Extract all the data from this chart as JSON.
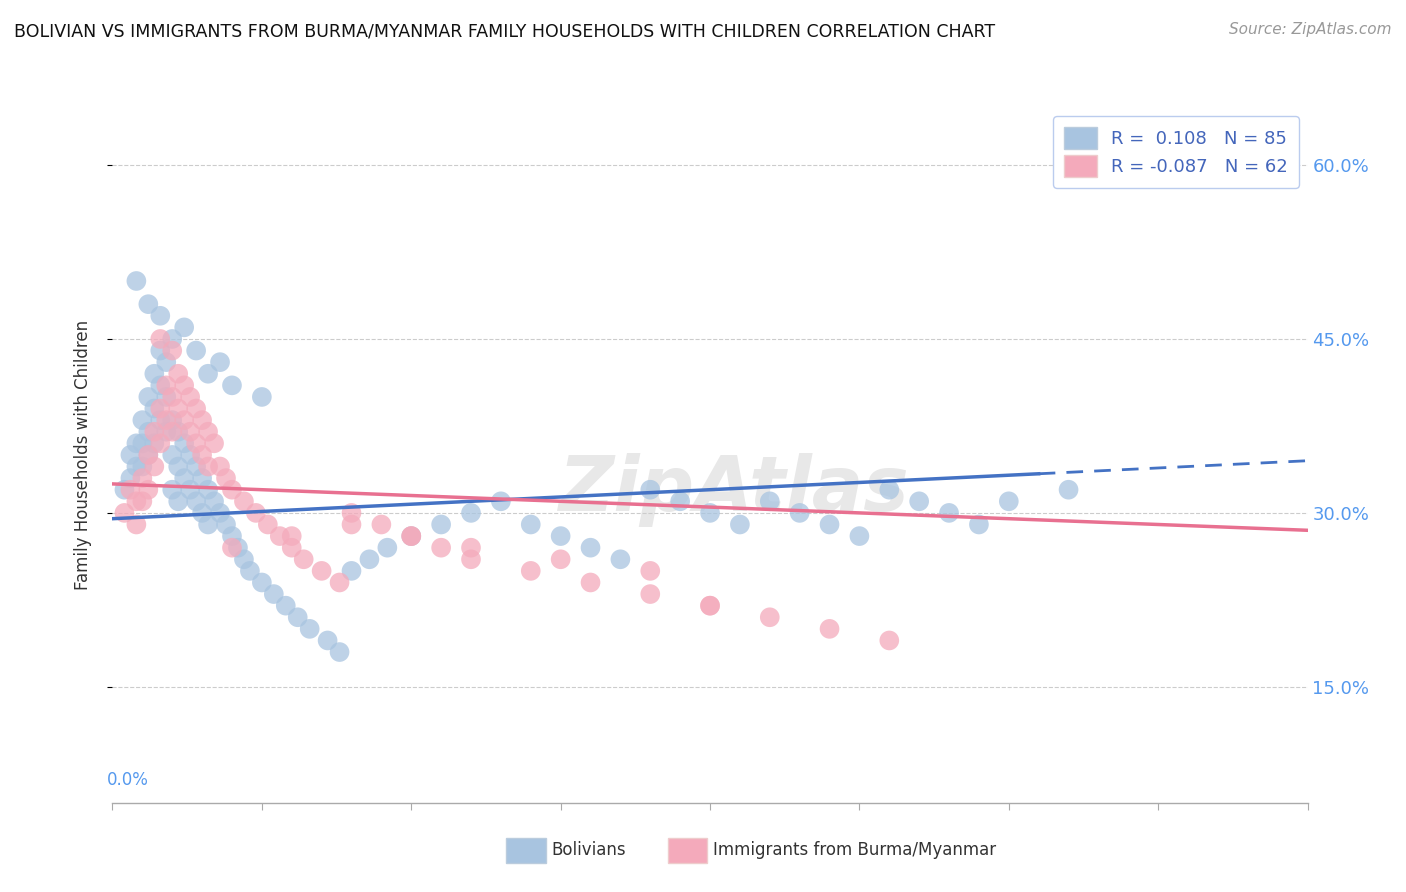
{
  "title": "BOLIVIAN VS IMMIGRANTS FROM BURMA/MYANMAR FAMILY HOUSEHOLDS WITH CHILDREN CORRELATION CHART",
  "source": "Source: ZipAtlas.com",
  "ylabel": "Family Households with Children",
  "ytick_vals": [
    0.15,
    0.3,
    0.45,
    0.6
  ],
  "ytick_labels": [
    "15.0%",
    "30.0%",
    "45.0%",
    "60.0%"
  ],
  "xlim": [
    0.0,
    0.2
  ],
  "ylim": [
    0.05,
    0.65
  ],
  "legend1_R": "0.108",
  "legend1_N": "85",
  "legend2_R": "-0.087",
  "legend2_N": "62",
  "blue_color": "#A8C4E0",
  "pink_color": "#F4AABB",
  "line_blue": "#4472C4",
  "line_pink": "#E87090",
  "watermark": "ZipAtlas",
  "blue_line_x0": 0.0,
  "blue_line_y0": 0.295,
  "blue_line_x1": 0.2,
  "blue_line_y1": 0.345,
  "blue_line_split": 0.155,
  "pink_line_x0": 0.0,
  "pink_line_y0": 0.325,
  "pink_line_x1": 0.2,
  "pink_line_y1": 0.285,
  "blue_scatter_x": [
    0.002,
    0.003,
    0.003,
    0.004,
    0.004,
    0.005,
    0.005,
    0.005,
    0.006,
    0.006,
    0.006,
    0.007,
    0.007,
    0.007,
    0.008,
    0.008,
    0.008,
    0.009,
    0.009,
    0.009,
    0.01,
    0.01,
    0.01,
    0.011,
    0.011,
    0.011,
    0.012,
    0.012,
    0.013,
    0.013,
    0.014,
    0.014,
    0.015,
    0.015,
    0.016,
    0.016,
    0.017,
    0.018,
    0.019,
    0.02,
    0.021,
    0.022,
    0.023,
    0.025,
    0.027,
    0.029,
    0.031,
    0.033,
    0.036,
    0.038,
    0.04,
    0.043,
    0.046,
    0.05,
    0.055,
    0.06,
    0.065,
    0.07,
    0.075,
    0.08,
    0.085,
    0.09,
    0.095,
    0.1,
    0.105,
    0.11,
    0.115,
    0.12,
    0.125,
    0.13,
    0.135,
    0.14,
    0.145,
    0.15,
    0.16,
    0.004,
    0.006,
    0.008,
    0.01,
    0.012,
    0.014,
    0.016,
    0.018,
    0.02,
    0.025
  ],
  "blue_scatter_y": [
    0.32,
    0.33,
    0.35,
    0.36,
    0.34,
    0.38,
    0.36,
    0.34,
    0.4,
    0.37,
    0.35,
    0.42,
    0.39,
    0.36,
    0.44,
    0.41,
    0.38,
    0.43,
    0.4,
    0.37,
    0.38,
    0.35,
    0.32,
    0.37,
    0.34,
    0.31,
    0.36,
    0.33,
    0.35,
    0.32,
    0.34,
    0.31,
    0.33,
    0.3,
    0.32,
    0.29,
    0.31,
    0.3,
    0.29,
    0.28,
    0.27,
    0.26,
    0.25,
    0.24,
    0.23,
    0.22,
    0.21,
    0.2,
    0.19,
    0.18,
    0.25,
    0.26,
    0.27,
    0.28,
    0.29,
    0.3,
    0.31,
    0.29,
    0.28,
    0.27,
    0.26,
    0.32,
    0.31,
    0.3,
    0.29,
    0.31,
    0.3,
    0.29,
    0.28,
    0.32,
    0.31,
    0.3,
    0.29,
    0.31,
    0.32,
    0.5,
    0.48,
    0.47,
    0.45,
    0.46,
    0.44,
    0.42,
    0.43,
    0.41,
    0.4
  ],
  "pink_scatter_x": [
    0.002,
    0.003,
    0.004,
    0.004,
    0.005,
    0.005,
    0.006,
    0.006,
    0.007,
    0.007,
    0.008,
    0.008,
    0.009,
    0.009,
    0.01,
    0.01,
    0.011,
    0.011,
    0.012,
    0.012,
    0.013,
    0.013,
    0.014,
    0.014,
    0.015,
    0.015,
    0.016,
    0.016,
    0.017,
    0.018,
    0.019,
    0.02,
    0.022,
    0.024,
    0.026,
    0.028,
    0.03,
    0.032,
    0.035,
    0.038,
    0.04,
    0.045,
    0.05,
    0.055,
    0.06,
    0.07,
    0.08,
    0.09,
    0.1,
    0.11,
    0.12,
    0.13,
    0.1,
    0.075,
    0.09,
    0.06,
    0.05,
    0.04,
    0.03,
    0.02,
    0.01,
    0.008
  ],
  "pink_scatter_y": [
    0.3,
    0.32,
    0.31,
    0.29,
    0.33,
    0.31,
    0.35,
    0.32,
    0.37,
    0.34,
    0.39,
    0.36,
    0.41,
    0.38,
    0.4,
    0.37,
    0.42,
    0.39,
    0.41,
    0.38,
    0.4,
    0.37,
    0.39,
    0.36,
    0.38,
    0.35,
    0.37,
    0.34,
    0.36,
    0.34,
    0.33,
    0.32,
    0.31,
    0.3,
    0.29,
    0.28,
    0.27,
    0.26,
    0.25,
    0.24,
    0.3,
    0.29,
    0.28,
    0.27,
    0.26,
    0.25,
    0.24,
    0.23,
    0.22,
    0.21,
    0.2,
    0.19,
    0.22,
    0.26,
    0.25,
    0.27,
    0.28,
    0.29,
    0.28,
    0.27,
    0.44,
    0.45
  ]
}
